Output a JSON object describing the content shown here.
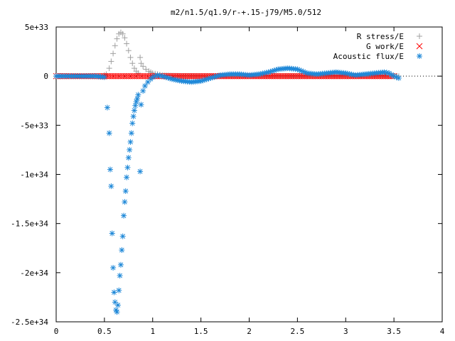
{
  "chart_data": {
    "type": "scatter",
    "title": "m2/n1.5/q1.9/r-+.15-j79/M5.0/512",
    "xlabel": "",
    "ylabel": "",
    "xlim": [
      0,
      4
    ],
    "ylim": [
      -2.5e+34,
      5e+33
    ],
    "xticks": [
      0,
      0.5,
      1,
      1.5,
      2,
      2.5,
      3,
      3.5,
      4
    ],
    "xtick_labels": [
      "0",
      "0.5",
      "1",
      "1.5",
      "2",
      "2.5",
      "3",
      "3.5",
      "4"
    ],
    "yticks": [
      5e+33,
      0,
      -5e+33,
      -1e+34,
      -1.5e+34,
      -2e+34,
      -2.5e+34
    ],
    "ytick_labels": [
      "5e+33",
      "0",
      "-5e+33",
      "-1e+34",
      "-1.5e+34",
      "-2e+34",
      "-2.5e+34"
    ],
    "grid": false,
    "legend_position": "top-right",
    "series": [
      {
        "name": "R stress/E",
        "marker": "plus",
        "color": "#a0a0a0",
        "x": [
          0.0,
          0.1,
          0.2,
          0.3,
          0.4,
          0.48,
          0.52,
          0.55,
          0.57,
          0.59,
          0.61,
          0.63,
          0.65,
          0.67,
          0.69,
          0.71,
          0.73,
          0.75,
          0.77,
          0.79,
          0.81,
          0.83,
          0.85,
          0.87,
          0.88,
          0.9,
          0.93,
          0.96,
          1.0,
          1.05,
          1.1,
          1.2,
          1.3,
          1.5,
          1.8,
          2.0,
          2.2,
          2.4,
          2.6,
          2.8,
          3.0,
          3.2,
          3.4,
          3.55
        ],
        "y": [
          0,
          0,
          0,
          0,
          0,
          1e+31,
          2e+32,
          8e+32,
          1.5e+33,
          2.3e+33,
          3.1e+33,
          3.8e+33,
          4.3e+33,
          4.45e+33,
          4.3e+33,
          3.9e+33,
          3.3e+33,
          2.6e+33,
          1.9e+33,
          1.3e+33,
          8e+32,
          5e+32,
          3e+32,
          1.9e+33,
          1.3e+33,
          1e+33,
          7e+32,
          5e+32,
          3e+32,
          2e+32,
          1e+32,
          5e+31,
          2e+31,
          0,
          0,
          0,
          0,
          0,
          0,
          0,
          0,
          0,
          0,
          0
        ]
      },
      {
        "name": "G work/E",
        "marker": "cross",
        "color": "#ff0000",
        "x": [
          0.0,
          0.25,
          0.5,
          0.6,
          0.7,
          0.8,
          0.9,
          1.0,
          1.2,
          1.4,
          1.6,
          1.8,
          2.0,
          2.2,
          2.4,
          2.6,
          2.8,
          3.0,
          3.2,
          3.4,
          3.5
        ],
        "y": [
          0,
          0,
          0,
          0,
          0,
          0,
          0,
          0,
          0,
          0,
          0,
          0,
          0,
          0,
          0,
          0,
          0,
          0,
          0,
          0,
          0
        ]
      },
      {
        "name": "Acoustic flux/E",
        "marker": "star",
        "color": "#1e88d8",
        "x": [
          0.0,
          0.1,
          0.2,
          0.3,
          0.4,
          0.5,
          0.53,
          0.55,
          0.56,
          0.57,
          0.58,
          0.59,
          0.6,
          0.61,
          0.62,
          0.63,
          0.64,
          0.65,
          0.66,
          0.67,
          0.68,
          0.69,
          0.7,
          0.71,
          0.72,
          0.73,
          0.74,
          0.75,
          0.76,
          0.77,
          0.78,
          0.79,
          0.8,
          0.81,
          0.82,
          0.83,
          0.84,
          0.85,
          0.87,
          0.88,
          0.9,
          0.92,
          0.95,
          0.98,
          1.0,
          1.05,
          1.1,
          1.2,
          1.3,
          1.4,
          1.5,
          1.6,
          1.7,
          1.8,
          1.9,
          2.0,
          2.1,
          2.2,
          2.3,
          2.4,
          2.5,
          2.6,
          2.7,
          2.8,
          2.9,
          3.0,
          3.1,
          3.2,
          3.3,
          3.4,
          3.45,
          3.5,
          3.55
        ],
        "y": [
          0,
          0,
          0,
          0,
          0,
          -1e+32,
          -3.2e+33,
          -5.8e+33,
          -9.5e+33,
          -1.12e+34,
          -1.6e+34,
          -1.95e+34,
          -2.2e+34,
          -2.3e+34,
          -2.38e+34,
          -2.4e+34,
          -2.33e+34,
          -2.18e+34,
          -2.03e+34,
          -1.92e+34,
          -1.77e+34,
          -1.63e+34,
          -1.42e+34,
          -1.28e+34,
          -1.17e+34,
          -1.03e+34,
          -9.3e+33,
          -8.3e+33,
          -7.5e+33,
          -6.7e+33,
          -5.8e+33,
          -4.8e+33,
          -4.1e+33,
          -3.5e+33,
          -3e+33,
          -2.6e+33,
          -2.3e+33,
          -1.9e+33,
          -9.7e+33,
          -2.9e+33,
          -1.5e+33,
          -1e+33,
          -6e+32,
          -3e+32,
          -1e+32,
          1e+32,
          0,
          -3e+32,
          -5e+32,
          -6e+32,
          -5e+32,
          -2e+32,
          1e+32,
          2e+32,
          2e+32,
          1e+32,
          2e+32,
          4e+32,
          7e+32,
          8e+32,
          7e+32,
          3e+32,
          2e+32,
          3e+32,
          4e+32,
          3e+32,
          1e+32,
          2e+32,
          3e+32,
          4e+32,
          3e+32,
          0,
          -2e+32
        ]
      }
    ]
  }
}
